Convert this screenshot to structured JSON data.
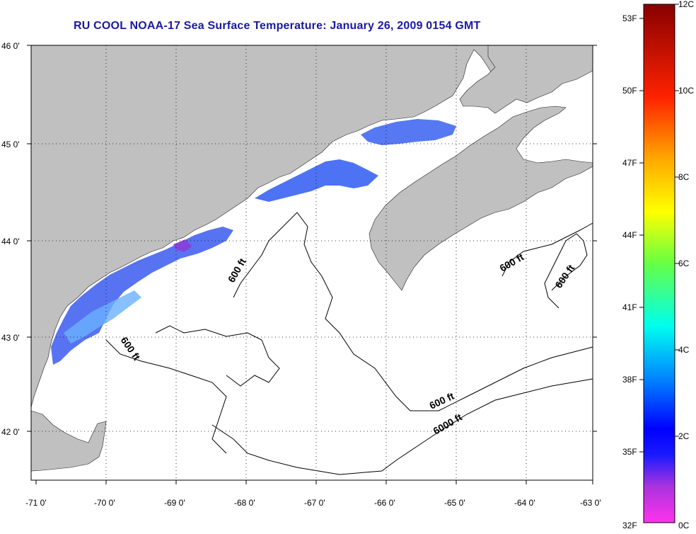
{
  "title": "RU COOL  NOAA-17  Sea Surface Temperature:  January 26, 2009 0154 GMT",
  "map": {
    "lon_range": [
      -71,
      -63
    ],
    "lat_range": [
      41.5,
      46.0
    ],
    "lat_ticks": [
      "46 0'",
      "45 0'",
      "44 0'",
      "43 0'",
      "42 0'"
    ],
    "lon_ticks": [
      "-71 0'",
      "-70 0'",
      "-69 0'",
      "-68 0'",
      "-67 0'",
      "-66 0'",
      "-65 0'",
      "-64 0'",
      "-63 0'"
    ],
    "grid": "dotted",
    "land_color": "#c0c0c0",
    "water_no_data_color": "#ffffff",
    "contour_labels": [
      "600 ft",
      "600 ft",
      "600 ft",
      "600 ft",
      "6000 ft",
      "600 ft"
    ]
  },
  "colorbar": {
    "fahrenheit_labels": [
      "53F",
      "50F",
      "47F",
      "44F",
      "41F",
      "38F",
      "35F",
      "32F"
    ],
    "celsius_labels": [
      "12C",
      "10C",
      "8C",
      "6C",
      "4C",
      "2C",
      "0C"
    ],
    "range_c": [
      0,
      12
    ],
    "colors": [
      "#ff33dd",
      "#8833dd",
      "#0000ff",
      "#00aaff",
      "#00ffcc",
      "#66ff33",
      "#ffff00",
      "#ffaa00",
      "#ff3300",
      "#cc0000",
      "#880000"
    ]
  }
}
